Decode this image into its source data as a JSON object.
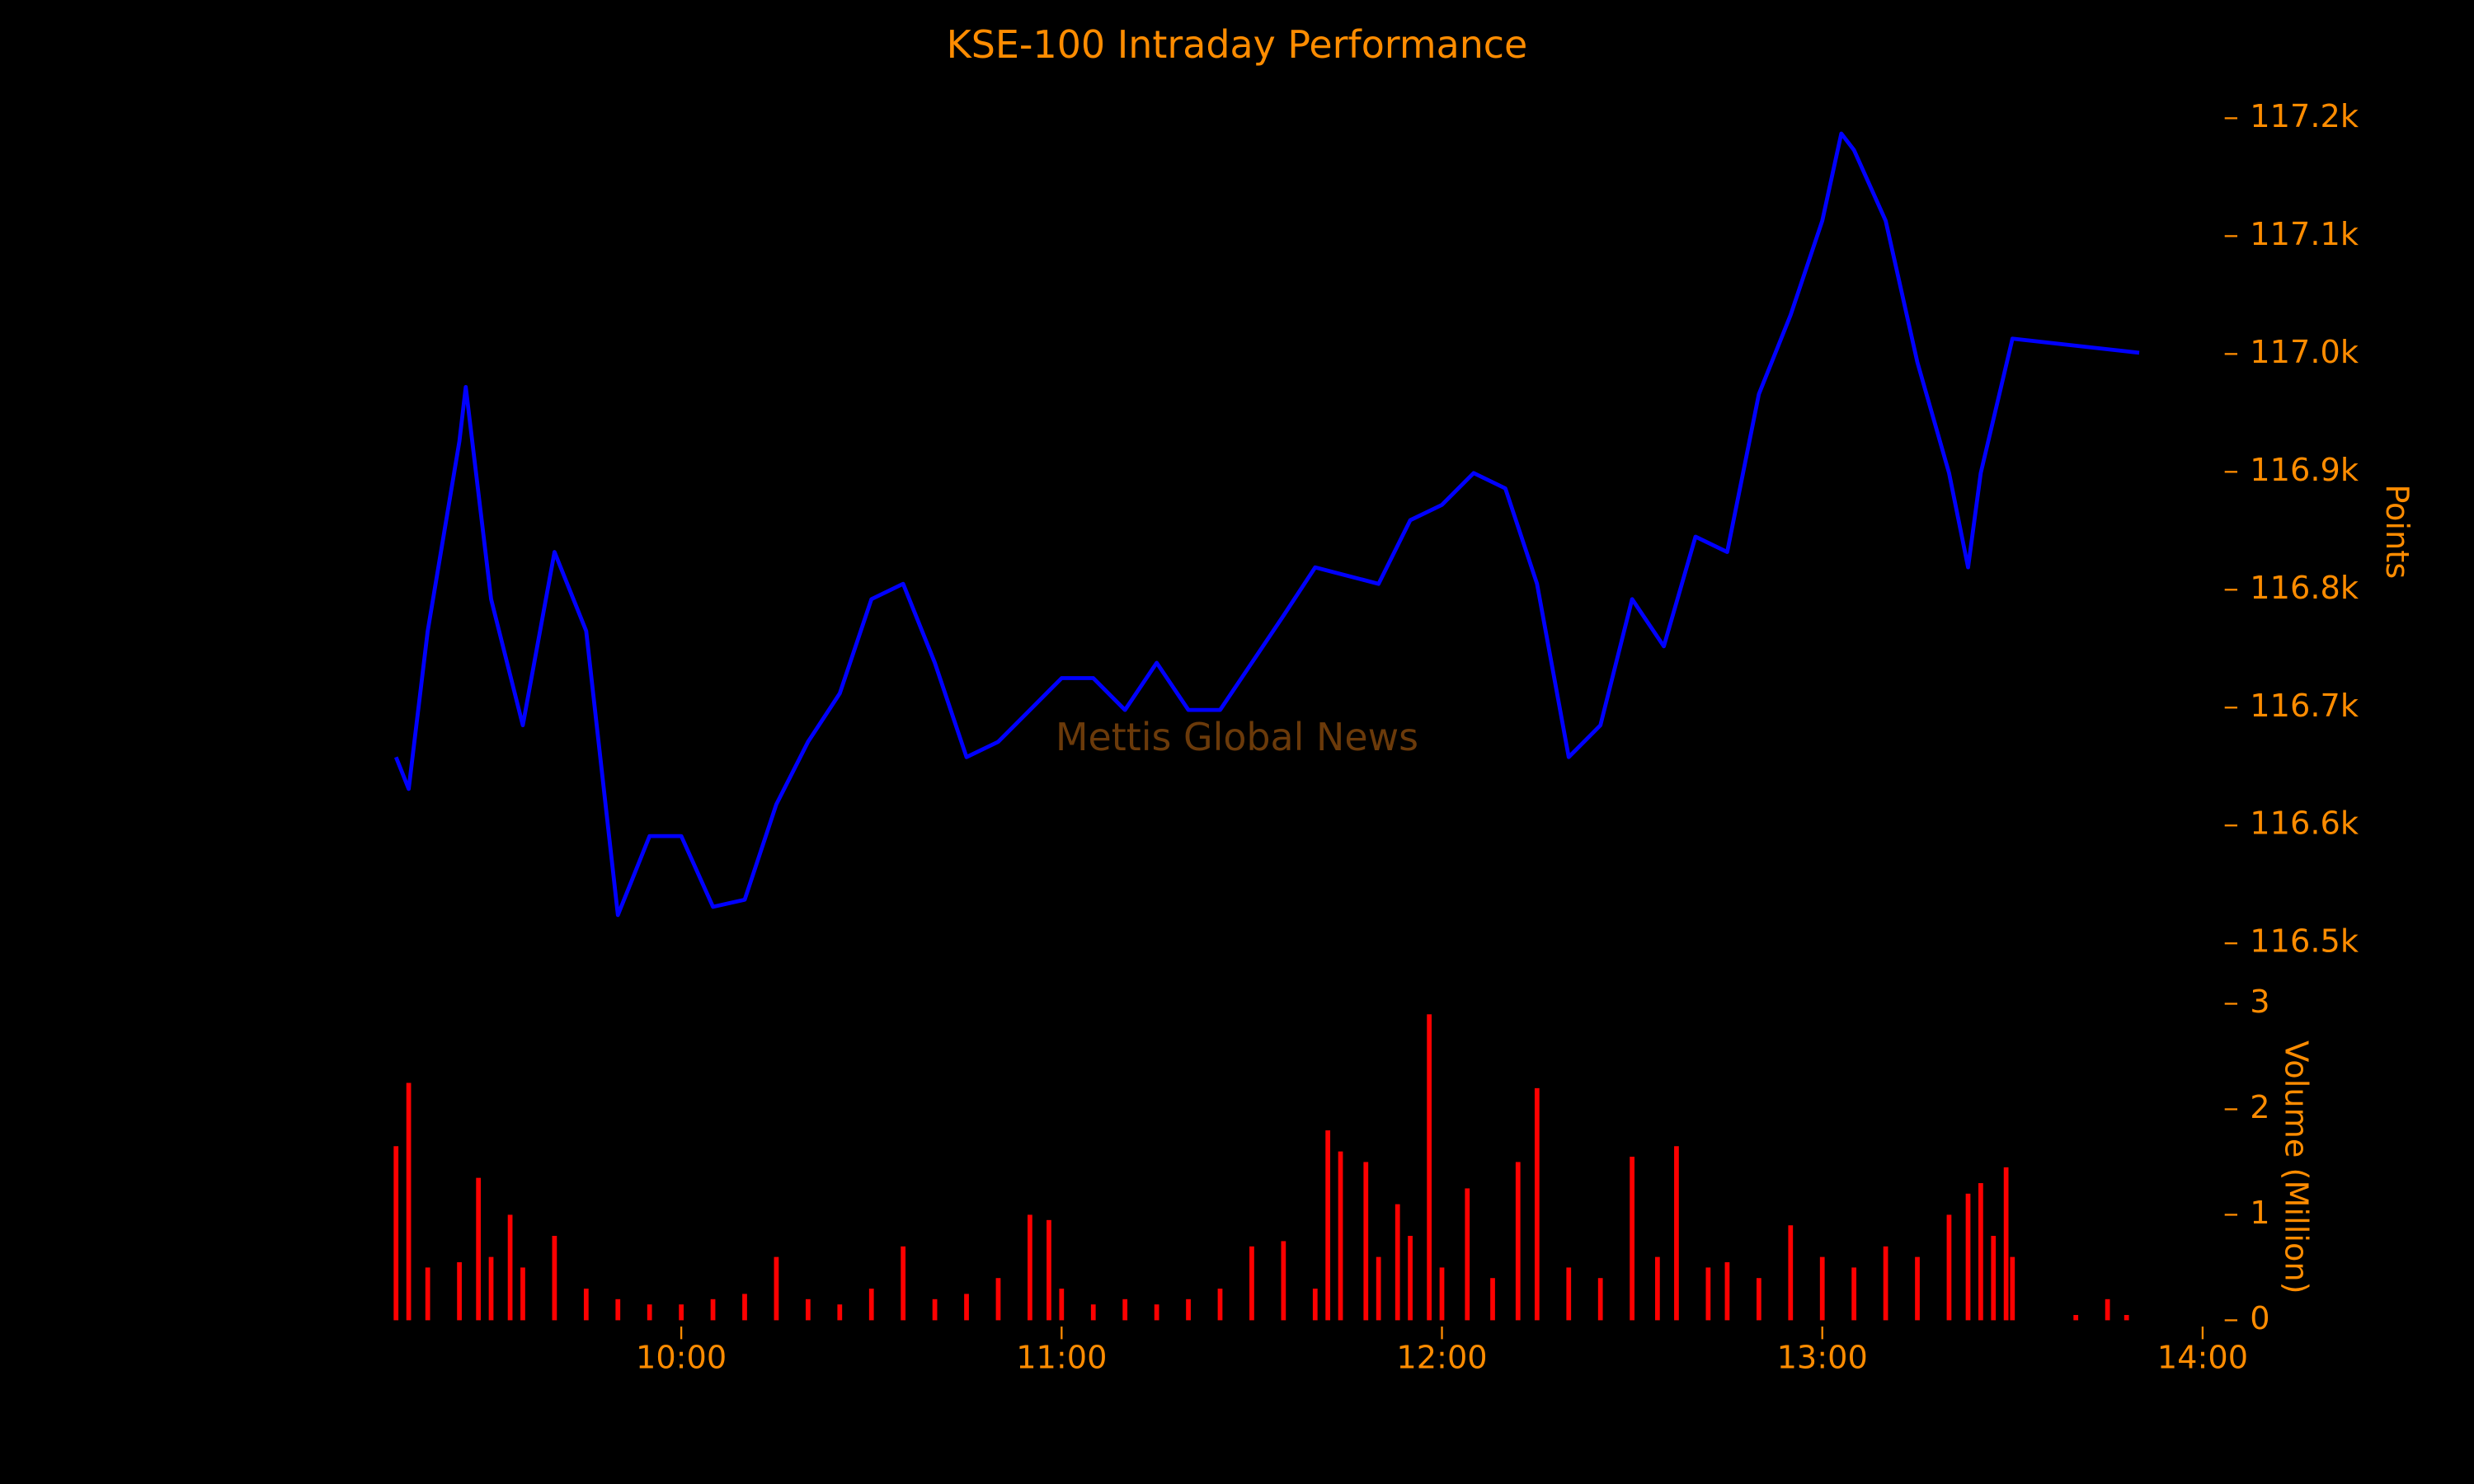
{
  "chart_data": [
    {
      "type": "line",
      "title": "KSE-100 Intraday Performance",
      "watermark": "Mettis Global News",
      "y_label": "Points",
      "color": "#0000ff",
      "x": [
        "09:15",
        "09:17",
        "09:20",
        "09:25",
        "09:26",
        "09:30",
        "09:35",
        "09:40",
        "09:45",
        "09:50",
        "09:55",
        "10:00",
        "10:05",
        "10:10",
        "10:15",
        "10:20",
        "10:25",
        "10:30",
        "10:35",
        "10:40",
        "10:45",
        "10:50",
        "10:55",
        "11:00",
        "11:05",
        "11:10",
        "11:15",
        "11:20",
        "11:25",
        "11:30",
        "11:35",
        "11:40",
        "11:45",
        "11:50",
        "11:55",
        "12:00",
        "12:05",
        "12:10",
        "12:15",
        "12:20",
        "12:25",
        "12:30",
        "12:35",
        "12:40",
        "12:45",
        "12:50",
        "12:55",
        "13:00",
        "13:03",
        "13:05",
        "13:10",
        "13:15",
        "13:20",
        "13:23",
        "13:25",
        "13:30",
        "13:50"
      ],
      "values": [
        116658,
        116631,
        116765,
        116926,
        116972,
        116792,
        116685,
        116832,
        116765,
        116524,
        116591,
        116591,
        116531,
        116537,
        116618,
        116671,
        116712,
        116792,
        116805,
        116738,
        116658,
        116671,
        116698,
        116725,
        116725,
        116698,
        116738,
        116698,
        116698,
        116738,
        116778,
        116819,
        116812,
        116805,
        116859,
        116872,
        116899,
        116886,
        116805,
        116658,
        116685,
        116792,
        116752,
        116845,
        116832,
        116966,
        117033,
        117113,
        117187,
        117173,
        117113,
        116993,
        116899,
        116819,
        116899,
        117013,
        117001
      ],
      "xlim": [
        "09:15",
        "14:00"
      ],
      "ylim": [
        116480,
        117220
      ],
      "yticks": [
        {
          "value": 116500,
          "label": "116.5k"
        },
        {
          "value": 116600,
          "label": "116.6k"
        },
        {
          "value": 116700,
          "label": "116.7k"
        },
        {
          "value": 116800,
          "label": "116.8k"
        },
        {
          "value": 116900,
          "label": "116.9k"
        },
        {
          "value": 117000,
          "label": "117.0k"
        },
        {
          "value": 117100,
          "label": "117.1k"
        },
        {
          "value": 117200,
          "label": "117.2k"
        }
      ]
    },
    {
      "type": "bar",
      "y_label": "Volume (Million)",
      "color": "#ff0000",
      "x": [
        "09:15",
        "09:17",
        "09:20",
        "09:25",
        "09:28",
        "09:30",
        "09:33",
        "09:35",
        "09:40",
        "09:45",
        "09:50",
        "09:55",
        "10:00",
        "10:05",
        "10:10",
        "10:15",
        "10:20",
        "10:25",
        "10:30",
        "10:35",
        "10:40",
        "10:45",
        "10:50",
        "10:55",
        "10:58",
        "11:00",
        "11:05",
        "11:10",
        "11:15",
        "11:20",
        "11:25",
        "11:30",
        "11:35",
        "11:40",
        "11:42",
        "11:44",
        "11:48",
        "11:50",
        "11:53",
        "11:55",
        "11:58",
        "12:00",
        "12:04",
        "12:08",
        "12:12",
        "12:15",
        "12:20",
        "12:25",
        "12:30",
        "12:34",
        "12:37",
        "12:42",
        "12:45",
        "12:50",
        "12:55",
        "13:00",
        "13:05",
        "13:10",
        "13:15",
        "13:20",
        "13:23",
        "13:25",
        "13:27",
        "13:29",
        "13:30",
        "13:40",
        "13:45",
        "13:48"
      ],
      "values": [
        1.65,
        2.25,
        0.5,
        0.55,
        1.35,
        0.6,
        1.0,
        0.5,
        0.8,
        0.3,
        0.2,
        0.15,
        0.15,
        0.2,
        0.25,
        0.6,
        0.2,
        0.15,
        0.3,
        0.7,
        0.2,
        0.25,
        0.4,
        1.0,
        0.95,
        0.3,
        0.15,
        0.2,
        0.15,
        0.2,
        0.3,
        0.7,
        0.75,
        0.3,
        1.8,
        1.6,
        1.5,
        0.6,
        1.1,
        0.8,
        2.9,
        0.5,
        1.25,
        0.4,
        1.5,
        2.2,
        0.5,
        0.4,
        1.55,
        0.6,
        1.65,
        0.5,
        0.55,
        0.4,
        0.9,
        0.6,
        0.5,
        0.7,
        0.6,
        1.0,
        1.2,
        1.3,
        0.8,
        1.45,
        0.6,
        0.05,
        0.2,
        0.05
      ],
      "xlim": [
        "09:15",
        "14:00"
      ],
      "xticks": [
        "10:00",
        "11:00",
        "12:00",
        "13:00",
        "14:00"
      ],
      "ylim": [
        0,
        3.05
      ],
      "yticks": [
        0,
        1,
        2,
        3
      ]
    }
  ]
}
